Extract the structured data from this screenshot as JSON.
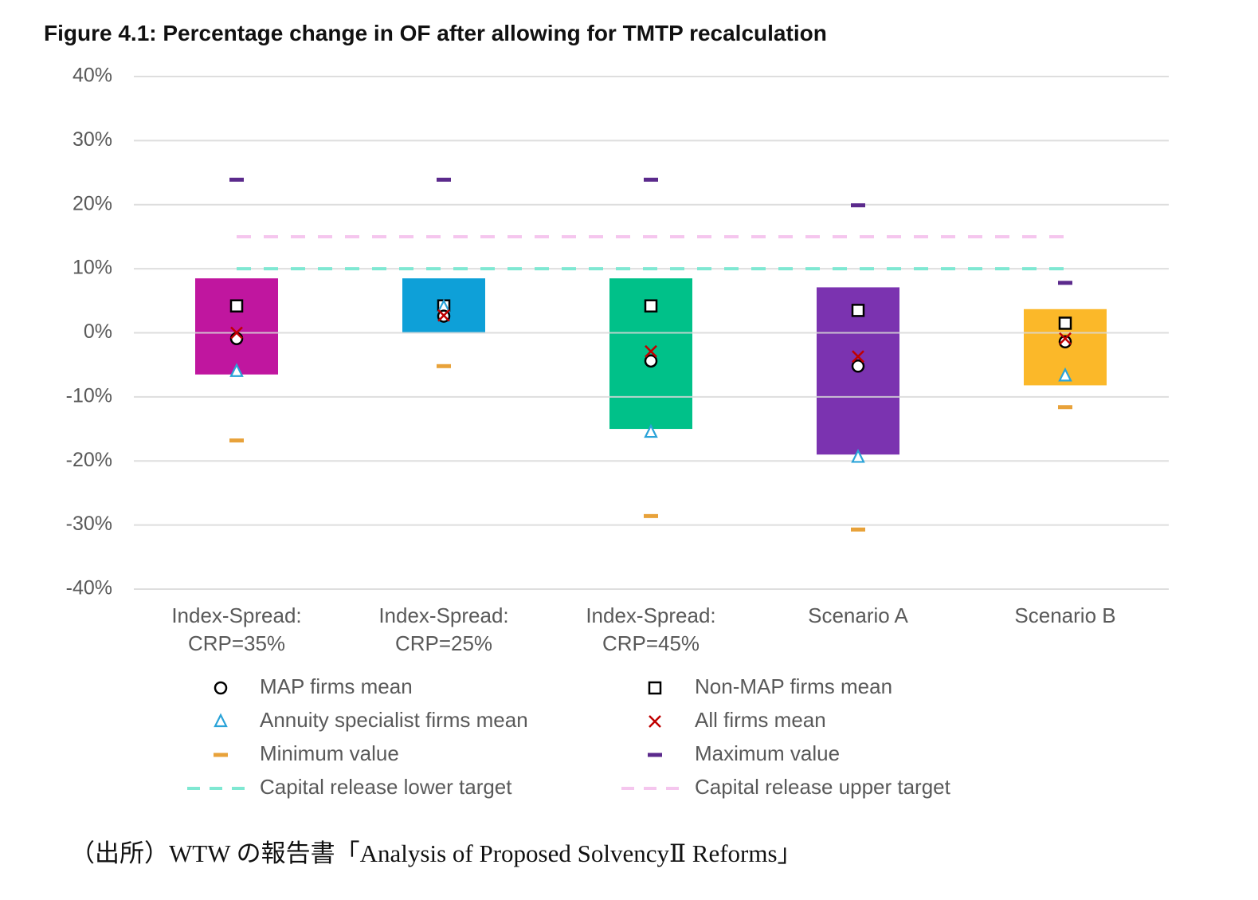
{
  "chart_data": {
    "type": "range-markers",
    "title": "Figure 4.1: Percentage change in OF after allowing for TMTP recalculation",
    "categories": [
      "Index-Spread: CRP=35%",
      "Index-Spread: CRP=25%",
      "Index-Spread: CRP=45%",
      "Scenario A",
      "Scenario B"
    ],
    "ylim": [
      -40,
      40
    ],
    "yticks": [
      {
        "value": 40,
        "label": "40%"
      },
      {
        "value": 30,
        "label": "30%"
      },
      {
        "value": 20,
        "label": "20%"
      },
      {
        "value": 10,
        "label": "10%"
      },
      {
        "value": 0,
        "label": "0%"
      },
      {
        "value": -10,
        "label": "-10%"
      },
      {
        "value": -20,
        "label": "-20%"
      },
      {
        "value": -30,
        "label": "-30%"
      },
      {
        "value": -40,
        "label": "-40%"
      }
    ],
    "grid": true,
    "bars": {
      "high": [
        8.5,
        8.5,
        8.5,
        7.1,
        3.7
      ],
      "low": [
        -6.5,
        0,
        -15,
        -19,
        -8.2
      ],
      "colors": [
        "#c0169f",
        "#0ea0d8",
        "#00c189",
        "#7b33b0",
        "#fbb829"
      ]
    },
    "series": [
      {
        "name": "MAP firms mean",
        "marker": "circle",
        "color": "#000000",
        "values": [
          -0.9,
          2.6,
          -4.4,
          -5.2,
          -1.4
        ]
      },
      {
        "name": "Non-MAP firms mean",
        "marker": "square",
        "color": "#000000",
        "values": [
          4.2,
          4.2,
          4.2,
          3.5,
          1.5
        ]
      },
      {
        "name": "Annuity specialist firms mean",
        "marker": "triangle",
        "color": "#2aa3d8",
        "values": [
          -6,
          4,
          -15.5,
          -19.4,
          -6.7
        ]
      },
      {
        "name": "All firms mean",
        "marker": "cross",
        "color": "#c00000",
        "values": [
          0,
          2.7,
          -2.9,
          -3.7,
          -0.9
        ]
      },
      {
        "name": "Minimum value",
        "marker": "dash",
        "color": "#e8a23a",
        "values": [
          -16.8,
          -5.2,
          -28.6,
          -30.7,
          -11.6
        ]
      },
      {
        "name": "Maximum value",
        "marker": "dash",
        "color": "#5b2a8c",
        "values": [
          23.9,
          23.9,
          23.9,
          19.9,
          7.8
        ]
      },
      {
        "name": "Capital release lower target",
        "marker": "line",
        "color": "#7fe8d2",
        "values": [
          10,
          10,
          10,
          10,
          10
        ]
      },
      {
        "name": "Capital release upper target",
        "marker": "line",
        "color": "#f5c6ee",
        "values": [
          15,
          15,
          15,
          15,
          15
        ]
      }
    ],
    "source": "（出所）WTW の報告書「Analysis of Proposed SolvencyⅡ Reforms」"
  }
}
